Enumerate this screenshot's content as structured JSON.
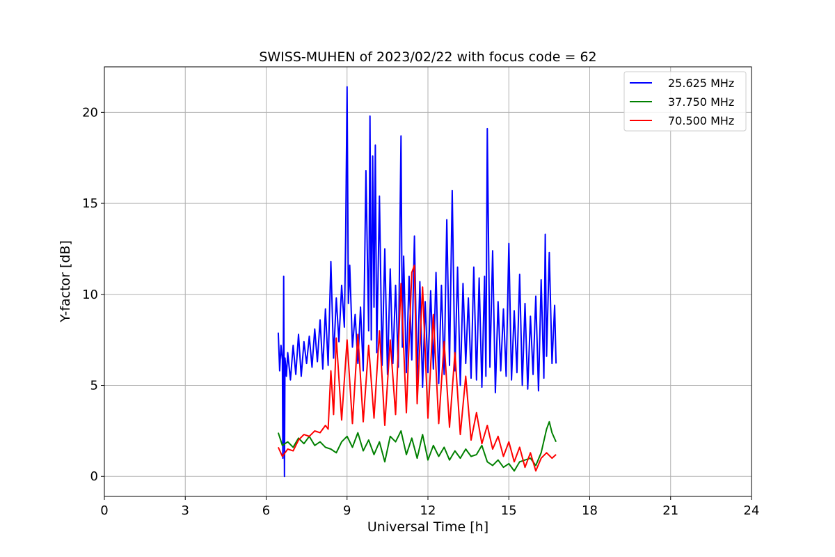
{
  "chart_data": {
    "type": "line",
    "title": "SWISS-MUHEN of 2023/02/22 with focus code = 62",
    "xlabel": "Universal Time [h]",
    "ylabel": "Y-factor [dB]",
    "xlim": [
      0,
      24
    ],
    "ylim": [
      -1.1,
      22.5
    ],
    "xticks": [
      0,
      3,
      6,
      9,
      12,
      15,
      18,
      21,
      24
    ],
    "yticks": [
      0,
      5,
      10,
      15,
      20
    ],
    "grid": true,
    "legend_position": "top-right",
    "series": [
      {
        "name": "25.625 MHz",
        "color": "#0000ff",
        "x": [
          6.45,
          6.5,
          6.55,
          6.6,
          6.62,
          6.65,
          6.68,
          6.7,
          6.75,
          6.8,
          6.9,
          7.0,
          7.1,
          7.2,
          7.3,
          7.4,
          7.5,
          7.6,
          7.7,
          7.8,
          7.9,
          8.0,
          8.1,
          8.2,
          8.3,
          8.4,
          8.5,
          8.6,
          8.7,
          8.8,
          8.9,
          8.95,
          9.0,
          9.05,
          9.1,
          9.2,
          9.3,
          9.4,
          9.5,
          9.6,
          9.7,
          9.8,
          9.85,
          9.9,
          9.95,
          10.0,
          10.05,
          10.1,
          10.2,
          10.3,
          10.4,
          10.5,
          10.6,
          10.7,
          10.8,
          10.9,
          11.0,
          11.05,
          11.1,
          11.2,
          11.3,
          11.4,
          11.5,
          11.6,
          11.7,
          11.8,
          11.9,
          12.0,
          12.1,
          12.2,
          12.3,
          12.4,
          12.5,
          12.6,
          12.7,
          12.8,
          12.9,
          13.0,
          13.1,
          13.2,
          13.3,
          13.4,
          13.5,
          13.6,
          13.7,
          13.8,
          13.9,
          14.0,
          14.1,
          14.15,
          14.2,
          14.3,
          14.4,
          14.5,
          14.6,
          14.7,
          14.8,
          14.9,
          15.0,
          15.1,
          15.2,
          15.3,
          15.4,
          15.5,
          15.6,
          15.7,
          15.8,
          15.9,
          16.0,
          16.1,
          16.2,
          16.3,
          16.35,
          16.4,
          16.5,
          16.6,
          16.7,
          16.75
        ],
        "y": [
          7.9,
          5.8,
          7.2,
          6.4,
          1.0,
          11.0,
          0.0,
          6.5,
          5.5,
          6.8,
          5.3,
          7.2,
          5.6,
          7.8,
          5.5,
          7.4,
          6.2,
          7.7,
          6.0,
          8.1,
          6.3,
          8.6,
          5.9,
          9.2,
          6.1,
          11.8,
          6.5,
          9.8,
          7.4,
          10.5,
          8.2,
          13.3,
          21.4,
          9.5,
          11.6,
          7.1,
          8.9,
          6.2,
          9.3,
          5.8,
          16.8,
          8.0,
          19.8,
          7.5,
          17.6,
          9.3,
          18.2,
          6.8,
          15.4,
          6.1,
          12.5,
          5.6,
          11.4,
          6.2,
          10.5,
          6.0,
          18.7,
          7.1,
          12.1,
          5.7,
          11.0,
          6.4,
          13.2,
          5.3,
          10.7,
          4.9,
          9.6,
          5.7,
          10.2,
          5.9,
          11.2,
          5.1,
          10.5,
          5.6,
          14.1,
          6.1,
          15.7,
          5.8,
          11.5,
          5.0,
          10.6,
          6.2,
          9.8,
          5.4,
          11.5,
          5.3,
          10.9,
          4.9,
          11.0,
          5.5,
          19.1,
          6.0,
          12.4,
          4.6,
          9.6,
          5.8,
          9.2,
          5.5,
          12.8,
          5.3,
          9.1,
          5.7,
          11.1,
          5.0,
          9.5,
          4.8,
          8.8,
          5.6,
          9.9,
          4.7,
          10.8,
          5.4,
          13.3,
          6.6,
          12.3,
          6.2,
          9.4,
          6.2
        ]
      },
      {
        "name": "37.750 MHz",
        "color": "#008000",
        "x": [
          6.45,
          6.6,
          6.8,
          7.0,
          7.2,
          7.4,
          7.6,
          7.8,
          8.0,
          8.2,
          8.4,
          8.6,
          8.8,
          9.0,
          9.2,
          9.4,
          9.6,
          9.8,
          10.0,
          10.2,
          10.4,
          10.6,
          10.8,
          11.0,
          11.2,
          11.4,
          11.6,
          11.8,
          12.0,
          12.2,
          12.4,
          12.6,
          12.8,
          13.0,
          13.2,
          13.4,
          13.6,
          13.8,
          14.0,
          14.2,
          14.4,
          14.6,
          14.8,
          15.0,
          15.2,
          15.4,
          15.6,
          15.8,
          16.0,
          16.2,
          16.4,
          16.5,
          16.6,
          16.75
        ],
        "y": [
          2.4,
          1.7,
          1.9,
          1.6,
          2.1,
          1.8,
          2.2,
          1.7,
          1.9,
          1.6,
          1.5,
          1.3,
          1.9,
          2.2,
          1.6,
          2.4,
          1.4,
          2.0,
          1.2,
          1.9,
          0.8,
          2.2,
          1.9,
          2.5,
          1.2,
          2.1,
          1.0,
          2.3,
          0.9,
          1.7,
          1.1,
          1.6,
          0.9,
          1.4,
          1.0,
          1.5,
          1.1,
          1.2,
          1.7,
          0.8,
          0.6,
          0.9,
          0.5,
          0.7,
          0.3,
          0.8,
          0.9,
          1.0,
          0.6,
          1.3,
          2.6,
          3.0,
          2.4,
          1.9
        ]
      },
      {
        "name": "70.500 MHz",
        "color": "#ff0000",
        "x": [
          6.45,
          6.6,
          6.8,
          7.0,
          7.2,
          7.4,
          7.6,
          7.8,
          8.0,
          8.2,
          8.3,
          8.4,
          8.5,
          8.6,
          8.8,
          9.0,
          9.2,
          9.4,
          9.6,
          9.8,
          10.0,
          10.2,
          10.4,
          10.6,
          10.8,
          11.0,
          11.2,
          11.4,
          11.5,
          11.6,
          11.8,
          12.0,
          12.2,
          12.4,
          12.6,
          12.8,
          13.0,
          13.2,
          13.4,
          13.6,
          13.8,
          14.0,
          14.2,
          14.4,
          14.6,
          14.8,
          15.0,
          15.2,
          15.4,
          15.6,
          15.8,
          16.0,
          16.2,
          16.4,
          16.6,
          16.75
        ],
        "y": [
          1.6,
          1.1,
          1.5,
          1.4,
          2.0,
          2.3,
          2.2,
          2.5,
          2.4,
          2.8,
          2.6,
          5.8,
          3.4,
          7.6,
          3.1,
          7.5,
          2.9,
          7.8,
          3.0,
          7.2,
          3.2,
          8.0,
          2.8,
          7.5,
          3.4,
          10.6,
          3.5,
          11.2,
          11.6,
          4.0,
          10.4,
          3.2,
          8.9,
          2.9,
          7.4,
          2.7,
          6.8,
          2.3,
          5.5,
          2.0,
          3.5,
          1.8,
          2.8,
          1.5,
          2.2,
          1.1,
          1.9,
          0.8,
          1.6,
          0.5,
          1.3,
          0.3,
          1.0,
          1.3,
          1.0,
          1.2
        ]
      }
    ]
  }
}
